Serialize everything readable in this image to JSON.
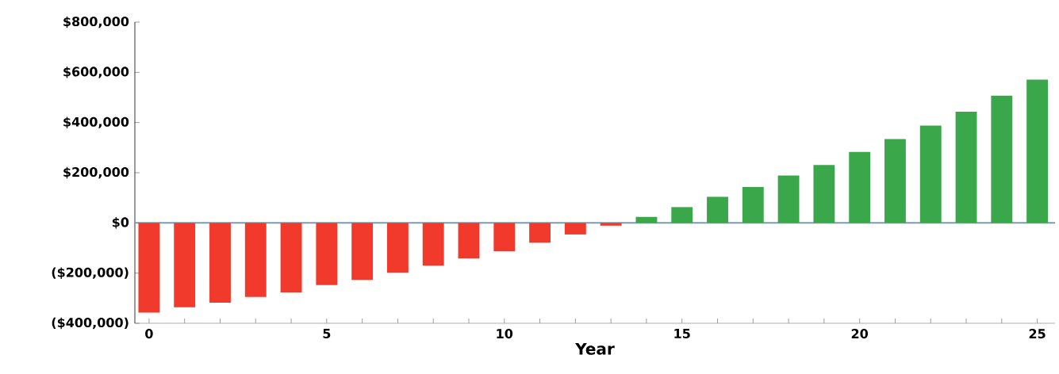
{
  "chart_data": {
    "type": "bar",
    "xlabel": "Year",
    "x": [
      0,
      1,
      2,
      3,
      4,
      5,
      6,
      7,
      8,
      9,
      10,
      11,
      12,
      13,
      14,
      15,
      16,
      17,
      18,
      19,
      20,
      21,
      22,
      23,
      24,
      25
    ],
    "values": [
      -357000,
      -336000,
      -318000,
      -295000,
      -277000,
      -248000,
      -227000,
      -199000,
      -170000,
      -142000,
      -113000,
      -79000,
      -46000,
      -11000,
      24000,
      63000,
      104000,
      143000,
      189000,
      231000,
      283000,
      334000,
      388000,
      443000,
      507000,
      571000
    ],
    "colors": [
      "#f23a2c",
      "#f23a2c",
      "#f23a2c",
      "#f23a2c",
      "#f23a2c",
      "#f23a2c",
      "#f23a2c",
      "#f23a2c",
      "#f23a2c",
      "#f23a2c",
      "#f23a2c",
      "#f23a2c",
      "#f23a2c",
      "#f23a2c",
      "#3aa84a",
      "#3aa84a",
      "#3aa84a",
      "#3aa84a",
      "#3aa84a",
      "#3aa84a",
      "#3aa84a",
      "#3aa84a",
      "#3aa84a",
      "#3aa84a",
      "#3aa84a",
      "#3aa84a"
    ],
    "xlim": [
      -0.4,
      25.5
    ],
    "xticks": [
      0,
      {
        "value": 1,
        "label": null
      },
      {
        "value": 2,
        "label": null
      },
      {
        "value": 3,
        "label": null
      },
      {
        "value": 4,
        "label": null
      },
      5,
      {
        "value": 6,
        "label": null
      },
      {
        "value": 7,
        "label": null
      },
      {
        "value": 8,
        "label": null
      },
      {
        "value": 9,
        "label": null
      },
      10,
      {
        "value": 11,
        "label": null
      },
      {
        "value": 12,
        "label": null
      },
      {
        "value": 13,
        "label": null
      },
      {
        "value": 14,
        "label": null
      },
      15,
      {
        "value": 16,
        "label": null
      },
      {
        "value": 17,
        "label": null
      },
      {
        "value": 18,
        "label": null
      },
      {
        "value": 19,
        "label": null
      },
      20,
      {
        "value": 21,
        "label": null
      },
      {
        "value": 22,
        "label": null
      },
      {
        "value": 23,
        "label": null
      },
      {
        "value": 24,
        "label": null
      },
      25
    ],
    "ylim": [
      -400000,
      800000
    ],
    "yticks": [
      {
        "value": -400000,
        "label": "($400,000)"
      },
      {
        "value": -200000,
        "label": "($200,000)"
      },
      {
        "value": 0,
        "label": "$0"
      },
      {
        "value": 200000,
        "label": "$200,000"
      },
      {
        "value": 400000,
        "label": "$400,000"
      },
      {
        "value": 600000,
        "label": "$600,000"
      },
      {
        "value": 800000,
        "label": "$800,000"
      }
    ],
    "ref_lines": [
      {
        "axis": "y",
        "value": 0,
        "color": "#7a9cb0"
      }
    ]
  }
}
